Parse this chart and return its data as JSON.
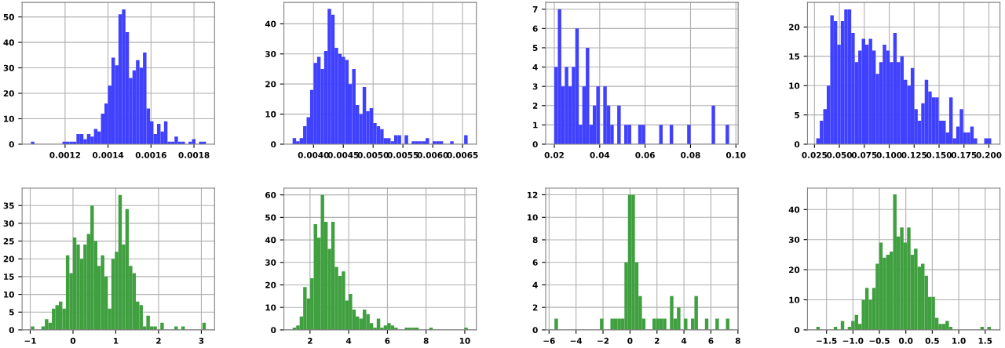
{
  "chart_data": [
    {
      "type": "histogram",
      "color": "#4040ff",
      "grid": true,
      "xlim": [
        0.001,
        0.001896
      ],
      "ylim": [
        0,
        55.7
      ],
      "xticks": [
        0.0012,
        0.0014,
        0.0016,
        0.0018
      ],
      "yticks": [
        0,
        10,
        20,
        30,
        40,
        50
      ],
      "bins": [
        0.001041,
        0.0010573,
        0.0010736,
        0.0010899,
        0.0011062,
        0.0011225,
        0.0011388,
        0.0011551,
        0.0011714,
        0.0011877,
        0.001204,
        0.0012203,
        0.0012366,
        0.0012529,
        0.0012692,
        0.0012855,
        0.0013018,
        0.0013181,
        0.0013344,
        0.0013507,
        0.001367,
        0.0013833,
        0.0013996,
        0.0014159,
        0.0014322,
        0.0014485,
        0.0014648,
        0.0014811,
        0.0014974,
        0.0015137,
        0.00153,
        0.0015463,
        0.0015626,
        0.0015789,
        0.0015952,
        0.0016115,
        0.0016278,
        0.0016441,
        0.0016604,
        0.0016767,
        0.001693,
        0.0017093,
        0.0017256,
        0.0017419,
        0.0017582,
        0.0017745,
        0.0017908,
        0.0018071,
        0.0018234,
        0.0018397,
        0.001856
      ],
      "values": [
        1,
        0,
        0,
        0,
        0,
        0,
        0,
        0,
        0,
        1,
        1,
        1,
        1,
        4,
        4,
        2,
        4,
        3,
        6,
        5,
        12,
        16,
        23,
        34,
        31,
        51,
        53,
        44,
        26,
        29,
        33,
        30,
        36,
        14,
        9,
        4,
        8,
        5,
        9,
        1,
        1,
        3,
        1,
        1,
        0,
        1,
        2,
        0,
        1,
        1
      ]
    },
    {
      "type": "histogram",
      "color": "#4040ff",
      "grid": true,
      "xlim": [
        0.003504,
        0.006732
      ],
      "ylim": [
        0,
        47.1
      ],
      "xticks": [
        {
          "value": 0.004,
          "label": "0.0040"
        },
        0.0045,
        {
          "value": 0.005,
          "label": "0.0050"
        },
        0.0055,
        {
          "value": 0.006,
          "label": "0.0060"
        },
        0.0065
      ],
      "yticks": [
        0,
        10,
        20,
        30,
        40
      ],
      "bins": [
        0.00365,
        0.0037087,
        0.0037674,
        0.0038261,
        0.0038848,
        0.0039435,
        0.0040022,
        0.0040609,
        0.0041196,
        0.0041783,
        0.004237,
        0.0042957,
        0.0043544,
        0.0044131,
        0.0044718,
        0.0045305,
        0.0045892,
        0.0046479,
        0.0047066,
        0.0047653,
        0.004824,
        0.0048827,
        0.0049414,
        0.0050001,
        0.0050588,
        0.0051175,
        0.0051762,
        0.0052349,
        0.0052936,
        0.0053523,
        0.005411,
        0.0054697,
        0.0055284,
        0.0055871,
        0.0056458,
        0.0057045,
        0.0057632,
        0.0058219,
        0.0058806,
        0.0059393,
        0.005998,
        0.0060567,
        0.0061154,
        0.0061741,
        0.0062328,
        0.0062915,
        0.0063502,
        0.0064089,
        0.0064676,
        0.0065263,
        0.006585
      ],
      "values": [
        2,
        1,
        2,
        6,
        9,
        18,
        27,
        29,
        25,
        31,
        45,
        43,
        32,
        30,
        29,
        28,
        20,
        25,
        13,
        10,
        19,
        11,
        12,
        7,
        6,
        5,
        2,
        2,
        1,
        3,
        3,
        0,
        3,
        0,
        1,
        1,
        1,
        1,
        2,
        0,
        1,
        1,
        1,
        0,
        0,
        1,
        0,
        0,
        0,
        3
      ]
    },
    {
      "type": "histogram",
      "color": "#4040ff",
      "grid": true,
      "xlim": [
        0.0162,
        0.101
      ],
      "ylim": [
        0,
        7.35
      ],
      "xticks": [
        0.02,
        0.04,
        0.06,
        0.08,
        {
          "value": 0.1,
          "label": "0.10"
        }
      ],
      "yticks": [
        0,
        1,
        2,
        3,
        4,
        5,
        6,
        7
      ],
      "bins": [
        0.02,
        0.02154,
        0.02308,
        0.02462,
        0.02616,
        0.0277,
        0.02924,
        0.03078,
        0.03232,
        0.03386,
        0.0354,
        0.03694,
        0.03848,
        0.04002,
        0.04156,
        0.0431,
        0.04464,
        0.04618,
        0.04772,
        0.04926,
        0.0508,
        0.05234,
        0.05388,
        0.05542,
        0.05696,
        0.0585,
        0.06004,
        0.06158,
        0.06312,
        0.06466,
        0.0662,
        0.06774,
        0.06928,
        0.07082,
        0.07236,
        0.0739,
        0.07544,
        0.07698,
        0.07852,
        0.08006,
        0.0816,
        0.08314,
        0.08468,
        0.08622,
        0.08776,
        0.0893,
        0.09084,
        0.09238,
        0.09392,
        0.09546,
        0.097
      ],
      "values": [
        4,
        7,
        3,
        4,
        3,
        4,
        6,
        1,
        3,
        5,
        1,
        2,
        3,
        0,
        3,
        2,
        1,
        0,
        2,
        0,
        1,
        1,
        0,
        0,
        1,
        1,
        0,
        0,
        0,
        0,
        1,
        0,
        0,
        1,
        0,
        0,
        0,
        0,
        1,
        0,
        0,
        0,
        0,
        0,
        0,
        2,
        0,
        0,
        0,
        1
      ]
    },
    {
      "type": "histogram",
      "color": "#4040ff",
      "grid": true,
      "xlim": [
        0.018,
        0.2111
      ],
      "ylim": [
        0,
        24.2
      ],
      "xticks": [
        0.025,
        {
          "value": 0.05,
          "label": "0.050"
        },
        0.075,
        {
          "value": 0.1,
          "label": "0.100"
        },
        0.125,
        {
          "value": 0.15,
          "label": "0.150"
        },
        0.175,
        {
          "value": 0.2,
          "label": "0.200"
        }
      ],
      "yticks": [
        0,
        5,
        10,
        15,
        20
      ],
      "bins": [
        0.0268,
        0.03031,
        0.03382,
        0.03733,
        0.04084,
        0.04435,
        0.04786,
        0.05137,
        0.05488,
        0.05839,
        0.0619,
        0.06541,
        0.06892,
        0.07243,
        0.07594,
        0.07945,
        0.08296,
        0.08647,
        0.08998,
        0.09349,
        0.097,
        0.10051,
        0.10402,
        0.10753,
        0.11104,
        0.11455,
        0.11806,
        0.12157,
        0.12508,
        0.12859,
        0.1321,
        0.13561,
        0.13912,
        0.14263,
        0.14614,
        0.14965,
        0.15316,
        0.15667,
        0.16018,
        0.16369,
        0.1672,
        0.17071,
        0.17422,
        0.17773,
        0.18124,
        0.18475,
        0.18826,
        0.19177,
        0.19528,
        0.19879,
        0.2023
      ],
      "values": [
        1,
        4,
        6,
        10,
        22,
        21,
        17,
        21,
        23,
        23,
        19,
        14,
        16,
        18,
        17,
        18,
        16,
        12,
        14,
        17,
        16,
        14,
        19,
        14,
        15,
        11,
        10,
        13,
        6,
        4,
        7,
        11,
        9,
        8,
        8,
        4,
        4,
        2,
        8,
        1,
        3,
        6,
        2,
        2,
        3,
        1,
        0,
        0,
        1,
        1
      ]
    },
    {
      "type": "histogram",
      "color": "#40a040",
      "grid": true,
      "xlim": [
        -1.19,
        3.31
      ],
      "ylim": [
        0,
        39.9
      ],
      "xticks": [
        {
          "value": -1,
          "label": "−1"
        },
        0,
        1,
        2,
        3
      ],
      "yticks": [
        0,
        5,
        10,
        15,
        20,
        25,
        30,
        35
      ],
      "bins": [
        -0.985,
        -0.9032,
        -0.8214,
        -0.7396,
        -0.6578,
        -0.576,
        -0.4942,
        -0.4124,
        -0.3306,
        -0.2488,
        -0.167,
        -0.0852,
        -0.0034,
        0.0784,
        0.1602,
        0.242,
        0.3238,
        0.4056,
        0.4874,
        0.5692,
        0.651,
        0.7328,
        0.8146,
        0.8964,
        0.9782,
        1.06,
        1.1418,
        1.2236,
        1.3054,
        1.3872,
        1.469,
        1.5508,
        1.6326,
        1.7144,
        1.7962,
        1.878,
        1.9598,
        2.0416,
        2.1234,
        2.2052,
        2.287,
        2.3688,
        2.4506,
        2.5324,
        2.6142,
        2.696,
        2.7778,
        2.8596,
        2.9414,
        3.0232,
        3.105
      ],
      "values": [
        1,
        0,
        0,
        1,
        3,
        2,
        6,
        7,
        8,
        6,
        21,
        16,
        26,
        24,
        20,
        24,
        27,
        35,
        25,
        18,
        21,
        15,
        6,
        20,
        22,
        38,
        24,
        34,
        18,
        16,
        8,
        7,
        1,
        4,
        1,
        1,
        0,
        2,
        0,
        0,
        0,
        1,
        0,
        1,
        0,
        0,
        0,
        0,
        0,
        2
      ]
    },
    {
      "type": "histogram",
      "color": "#40a040",
      "grid": true,
      "xlim": [
        0.65,
        10.6
      ],
      "ylim": [
        0,
        63
      ],
      "xticks": [
        2,
        4,
        6,
        8,
        10
      ],
      "yticks": [
        0,
        10,
        20,
        30,
        40,
        50,
        60
      ],
      "bins": [
        1.104,
        1.285,
        1.466,
        1.647,
        1.828,
        2.009,
        2.19,
        2.371,
        2.552,
        2.733,
        2.914,
        3.095,
        3.276,
        3.457,
        3.638,
        3.819,
        4.0,
        4.181,
        4.362,
        4.543,
        4.724,
        4.905,
        5.086,
        5.267,
        5.448,
        5.629,
        5.81,
        5.991,
        6.172,
        6.353,
        6.534,
        6.715,
        6.896,
        7.077,
        7.258,
        7.439,
        7.62,
        7.801,
        7.982,
        8.163,
        8.344,
        8.525,
        8.706,
        8.887,
        9.068,
        9.249,
        9.43,
        9.611,
        9.792,
        9.973,
        10.154
      ],
      "values": [
        1,
        2,
        6,
        19,
        14,
        23,
        47,
        41,
        60,
        48,
        36,
        48,
        28,
        24,
        26,
        13,
        16,
        9,
        6,
        5,
        9,
        7,
        3,
        1,
        5,
        1,
        2,
        3,
        2,
        1,
        0,
        0,
        1,
        1,
        1,
        1,
        0,
        0,
        0,
        1,
        0,
        0,
        0,
        0,
        0,
        0,
        0,
        0,
        0,
        1
      ]
    },
    {
      "type": "histogram",
      "color": "#40a040",
      "grid": true,
      "xlim": [
        -6.25,
        8.02
      ],
      "ylim": [
        0,
        12.59
      ],
      "xticks": [
        {
          "value": -6,
          "label": "−6"
        },
        {
          "value": -4,
          "label": "−4"
        },
        {
          "value": -2,
          "label": "−2"
        },
        0,
        2,
        4,
        6,
        8
      ],
      "yticks": [
        0,
        2,
        4,
        6,
        8,
        10,
        12
      ],
      "bins": [
        -5.6,
        -5.3406,
        -5.0812,
        -4.8218,
        -4.5624,
        -4.303,
        -4.0436,
        -3.7842,
        -3.5248,
        -3.2654,
        -3.006,
        -2.7466,
        -2.4872,
        -2.2278,
        -1.9684,
        -1.709,
        -1.4496,
        -1.1902,
        -0.9308,
        -0.6714,
        -0.412,
        -0.1526,
        0.1068,
        0.3662,
        0.6256,
        0.885,
        1.1444,
        1.4038,
        1.6632,
        1.9226,
        2.182,
        2.4414,
        2.7008,
        2.9602,
        3.2196,
        3.479,
        3.7384,
        3.9978,
        4.2572,
        4.5166,
        4.776,
        5.0354,
        5.2948,
        5.5542,
        5.8136,
        6.073,
        6.3324,
        6.5918,
        6.8512,
        7.1106,
        7.37
      ],
      "values": [
        1,
        0,
        0,
        0,
        0,
        0,
        0,
        0,
        0,
        0,
        0,
        0,
        0,
        1,
        0,
        0,
        1,
        1,
        1,
        1,
        6,
        12,
        12,
        6,
        3,
        1,
        0,
        0,
        1,
        1,
        1,
        1,
        0,
        3,
        1,
        2,
        0,
        1,
        0,
        1,
        3,
        0,
        0,
        1,
        0,
        0,
        1,
        0,
        0,
        1
      ]
    },
    {
      "type": "histogram",
      "color": "#40a040",
      "grid": true,
      "xlim": [
        -1.86,
        1.78
      ],
      "ylim": [
        0,
        47.1
      ],
      "xticks": [
        {
          "value": -1.5,
          "label": "−1.5"
        },
        {
          "value": -1.0,
          "label": "−1.0"
        },
        {
          "value": -0.5,
          "label": "−0.5"
        },
        {
          "value": 0.0,
          "label": "0.0"
        },
        {
          "value": 0.5,
          "label": "0.5"
        },
        {
          "value": 1.0,
          "label": "1.0"
        },
        {
          "value": 1.5,
          "label": "1.5"
        }
      ],
      "yticks": [
        0,
        10,
        20,
        30,
        40
      ],
      "bins": [
        -1.693,
        -1.627,
        -1.561,
        -1.495,
        -1.429,
        -1.363,
        -1.297,
        -1.231,
        -1.165,
        -1.099,
        -1.033,
        -0.967,
        -0.901,
        -0.835,
        -0.769,
        -0.703,
        -0.637,
        -0.571,
        -0.505,
        -0.439,
        -0.373,
        -0.307,
        -0.241,
        -0.175,
        -0.109,
        -0.043,
        0.023,
        0.089,
        0.155,
        0.221,
        0.287,
        0.353,
        0.419,
        0.485,
        0.551,
        0.617,
        0.683,
        0.749,
        0.815,
        0.881,
        0.947,
        1.013,
        1.079,
        1.145,
        1.211,
        1.277,
        1.343,
        1.409,
        1.475,
        1.541,
        1.607
      ],
      "values": [
        1,
        0,
        0,
        0,
        0,
        1,
        0,
        3,
        0,
        1,
        3,
        5,
        2,
        10,
        14,
        10,
        14,
        22,
        29,
        24,
        25,
        26,
        45,
        31,
        34,
        29,
        34,
        25,
        27,
        21,
        22,
        18,
        11,
        11,
        4,
        2,
        2,
        3,
        1,
        0,
        0,
        0,
        0,
        0,
        0,
        0,
        0,
        1,
        0,
        1
      ]
    }
  ]
}
